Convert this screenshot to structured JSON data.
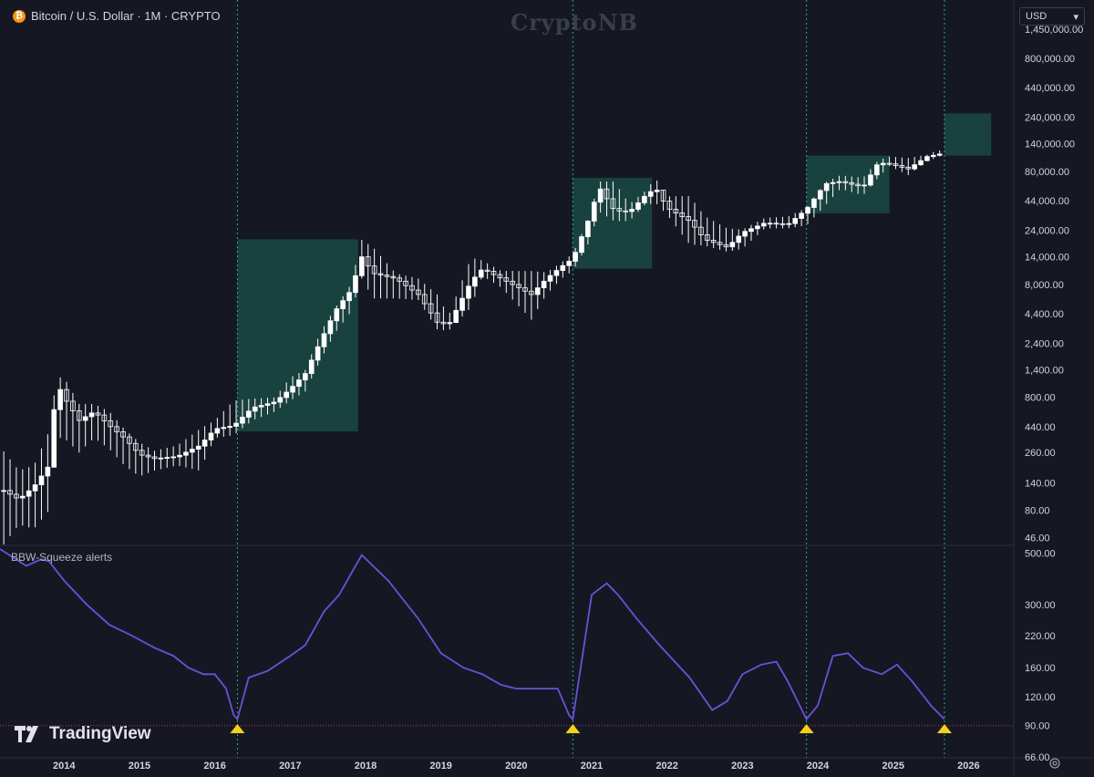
{
  "header": {
    "symbol_title": "Bitcoin / U.S. Dollar · 1M · CRYPTO",
    "coin_glyph": "₿"
  },
  "watermark": "CryptoNB",
  "currency_select": {
    "value": "USD",
    "glyph": "▾"
  },
  "indicator_label": "BBW-Squeeze alerts",
  "brand": {
    "name": "TradingView"
  },
  "colors": {
    "background": "#151823",
    "candle": "#ffffff",
    "highlight_box": "#1a4a44",
    "signal_line": "#26a69a",
    "bbw_line": "#6f4fd8",
    "threshold": "#c0394a",
    "alert_marker": "#f5d016"
  },
  "chart_data": [
    {
      "type": "candlestick",
      "title": "Bitcoin / U.S. Dollar · 1M · CRYPTO",
      "y_scale": "log",
      "price_axis_ticks": [
        "1,450,000.00",
        "800,000.00",
        "440,000.00",
        "240,000.00",
        "140,000.00",
        "80,000.00",
        "44,000.00",
        "24,000.00",
        "14,000.00",
        "8,000.00",
        "4,400.00",
        "2,400.00",
        "1,400.00",
        "800.00",
        "440.00",
        "260.00",
        "140.00",
        "80.00",
        "46.00"
      ],
      "x_axis_ticks": [
        "2014",
        "2015",
        "2016",
        "2017",
        "2018",
        "2019",
        "2020",
        "2021",
        "2022",
        "2023",
        "2024",
        "2025",
        "2026"
      ],
      "x_range": [
        2013.15,
        2026.6
      ],
      "ylim": [
        40,
        1500000
      ],
      "close_series": {
        "x": [
          2013.2,
          2013.4,
          2013.6,
          2013.8,
          2013.9,
          2014.0,
          2014.2,
          2014.4,
          2014.6,
          2014.8,
          2015.0,
          2015.2,
          2015.5,
          2015.8,
          2016.0,
          2016.25,
          2016.5,
          2016.8,
          2017.0,
          2017.2,
          2017.4,
          2017.6,
          2017.8,
          2017.95,
          2018.1,
          2018.4,
          2018.7,
          2018.95,
          2019.1,
          2019.4,
          2019.55,
          2019.8,
          2020.2,
          2020.4,
          2020.6,
          2020.75,
          2020.95,
          2021.1,
          2021.3,
          2021.5,
          2021.7,
          2021.85,
          2022.0,
          2022.3,
          2022.5,
          2022.8,
          2023.0,
          2023.3,
          2023.6,
          2023.85,
          2024.1,
          2024.3,
          2024.6,
          2024.8,
          2024.95,
          2025.2,
          2025.45,
          2025.6,
          2025.65
        ],
        "y": [
          120,
          100,
          130,
          200,
          1100,
          800,
          500,
          600,
          450,
          350,
          250,
          230,
          240,
          300,
          420,
          450,
          650,
          730,
          950,
          1300,
          2500,
          4700,
          7000,
          14000,
          10000,
          9000,
          6500,
          3700,
          3500,
          8500,
          11000,
          9000,
          6500,
          9000,
          11500,
          13500,
          29000,
          58000,
          36000,
          35000,
          48000,
          57000,
          38000,
          29000,
          20000,
          17000,
          23000,
          28000,
          27000,
          37000,
          62000,
          65000,
          58000,
          95000,
          93000,
          84000,
          108000,
          113000,
          115000
        ],
        "wick_low": [
          40,
          60,
          55,
          80,
          350,
          350,
          260,
          350,
          280,
          200,
          160,
          180,
          200,
          180,
          350,
          370,
          500,
          600,
          750,
          900,
          1700,
          3000,
          4500,
          9000,
          6000,
          6000,
          5800,
          3200,
          3100,
          5000,
          9500,
          7500,
          3900,
          6500,
          9000,
          10500,
          18000,
          35000,
          29000,
          29000,
          40000,
          42000,
          33000,
          18000,
          17600,
          15500,
          16500,
          25000,
          25000,
          26500,
          40000,
          56000,
          49000,
          70000,
          89000,
          74000,
          98000,
          107000,
          110000
        ],
        "wick_high": [
          266,
          180,
          200,
          400,
          1200,
          1200,
          700,
          700,
          600,
          420,
          320,
          270,
          300,
          420,
          500,
          750,
          780,
          800,
          1200,
          1400,
          3000,
          5000,
          7900,
          19800,
          17000,
          10000,
          9000,
          6500,
          4200,
          13800,
          13000,
          10500,
          10500,
          10200,
          12500,
          15000,
          29500,
          65000,
          64800,
          41000,
          52900,
          69000,
          48000,
          48200,
          32000,
          25000,
          24400,
          31000,
          31800,
          38000,
          64000,
          73800,
          70000,
          99800,
          108000,
          105000,
          112000,
          124000,
          119000
        ]
      },
      "annotations": {
        "signal_lines_at_x": [
          2016.3,
          2020.75,
          2023.85,
          2025.68
        ],
        "projection_boxes": [
          {
            "x_start": 2016.3,
            "x_end": 2017.9,
            "y_low": 400,
            "y_high": 20000
          },
          {
            "x_start": 2020.75,
            "x_end": 2021.8,
            "y_low": 11000,
            "y_high": 70000
          },
          {
            "x_start": 2023.85,
            "x_end": 2024.95,
            "y_low": 34000,
            "y_high": 110000
          },
          {
            "x_start": 2025.68,
            "x_end": 2026.3,
            "y_low": 110000,
            "y_high": 260000
          }
        ]
      }
    },
    {
      "type": "line",
      "title": "BBW-Squeeze alerts",
      "y_scale": "log",
      "y_axis_ticks": [
        "500.00",
        "300.00",
        "220.00",
        "160.00",
        "120.00",
        "90.00",
        "66.00"
      ],
      "ylim": [
        66,
        520
      ],
      "threshold": 90,
      "series": [
        {
          "x": [
            2013.15,
            2013.5,
            2013.7,
            2013.8,
            2014.0,
            2014.3,
            2014.6,
            2014.9,
            2015.2,
            2015.45,
            2015.65,
            2015.85,
            2016.0,
            2016.15,
            2016.25,
            2016.3,
            2016.45,
            2016.7,
            2017.0,
            2017.2,
            2017.45,
            2017.65,
            2017.95,
            2018.3,
            2018.7,
            2019.0,
            2019.3,
            2019.55,
            2019.8,
            2020.0,
            2020.3,
            2020.55,
            2020.7,
            2020.75,
            2020.9,
            2021.0,
            2021.2,
            2021.35,
            2021.6,
            2021.9,
            2022.3,
            2022.6,
            2022.8,
            2023.0,
            2023.25,
            2023.45,
            2023.6,
            2023.85,
            2024.0,
            2024.2,
            2024.4,
            2024.6,
            2024.85,
            2025.05,
            2025.25,
            2025.5,
            2025.68
          ],
          "y": [
            520,
            440,
            470,
            460,
            380,
            300,
            245,
            220,
            195,
            180,
            160,
            150,
            150,
            130,
            100,
            96,
            145,
            155,
            180,
            200,
            280,
            330,
            490,
            380,
            260,
            185,
            160,
            150,
            135,
            130,
            130,
            130,
            100,
            96,
            200,
            330,
            370,
            330,
            260,
            200,
            145,
            105,
            115,
            150,
            165,
            170,
            140,
            96,
            110,
            180,
            185,
            160,
            150,
            165,
            140,
            110,
            96
          ]
        }
      ],
      "alert_markers_at_x": [
        2016.3,
        2020.75,
        2023.85,
        2025.68
      ]
    }
  ]
}
